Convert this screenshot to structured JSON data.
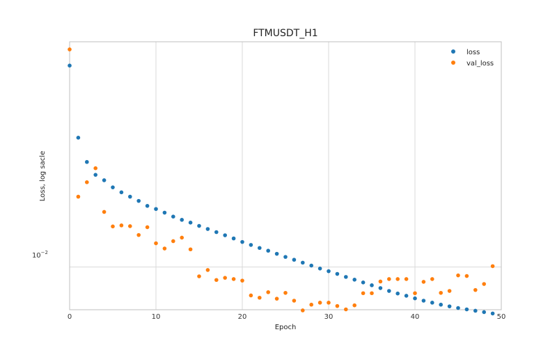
{
  "chart_data": {
    "type": "scatter",
    "title": "FTMUSDT_H1",
    "xlabel": "Epoch",
    "ylabel": "Loss, log sacle",
    "x_ticks": [
      "0",
      "10",
      "20",
      "30",
      "40",
      "50"
    ],
    "y_tick_label": {
      "base": "10",
      "exponent": "−2"
    },
    "xlim": [
      0,
      50
    ],
    "ylim": [
      0.00865,
      0.0215
    ],
    "y_scale": "log",
    "grid": true,
    "legend_position": "top-right",
    "series": [
      {
        "name": "loss",
        "color": "#1f77b4",
        "x": [
          0,
          1,
          2,
          3,
          4,
          5,
          6,
          7,
          8,
          9,
          10,
          11,
          12,
          13,
          14,
          15,
          16,
          17,
          18,
          19,
          20,
          21,
          22,
          23,
          24,
          25,
          26,
          27,
          28,
          29,
          30,
          31,
          32,
          33,
          34,
          35,
          36,
          37,
          38,
          39,
          40,
          41,
          42,
          43,
          44,
          45,
          46,
          47,
          48,
          49
        ],
        "y": [
          0.01983,
          0.01552,
          0.01429,
          0.01368,
          0.01343,
          0.01311,
          0.01289,
          0.0127,
          0.01252,
          0.01231,
          0.01218,
          0.01203,
          0.01187,
          0.01174,
          0.01163,
          0.0115,
          0.01138,
          0.01126,
          0.01114,
          0.01102,
          0.01089,
          0.01078,
          0.01067,
          0.01057,
          0.01046,
          0.01035,
          0.01025,
          0.01015,
          0.01005,
          0.00995,
          0.00986,
          0.00977,
          0.00967,
          0.00958,
          0.00949,
          0.0094,
          0.00931,
          0.00922,
          0.00914,
          0.00907,
          0.00899,
          0.00892,
          0.00886,
          0.0088,
          0.00875,
          0.0087,
          0.00866,
          0.00862,
          0.00858,
          0.00854
        ]
      },
      {
        "name": "val_loss",
        "color": "#ff7f0e",
        "x": [
          0,
          1,
          2,
          3,
          4,
          5,
          6,
          7,
          8,
          9,
          10,
          11,
          12,
          13,
          14,
          15,
          16,
          17,
          18,
          19,
          20,
          21,
          22,
          23,
          24,
          25,
          26,
          27,
          28,
          29,
          30,
          31,
          32,
          33,
          34,
          35,
          36,
          37,
          38,
          39,
          40,
          41,
          42,
          43,
          44,
          45,
          46,
          47,
          48,
          49
        ],
        "y": [
          0.02095,
          0.0127,
          0.01334,
          0.01399,
          0.01206,
          0.01148,
          0.01152,
          0.01149,
          0.01115,
          0.01145,
          0.01084,
          0.01065,
          0.01092,
          0.01105,
          0.01062,
          0.00969,
          0.0099,
          0.00957,
          0.00964,
          0.0096,
          0.00955,
          0.00908,
          0.00901,
          0.00918,
          0.00898,
          0.00916,
          0.00892,
          0.00863,
          0.0088,
          0.00886,
          0.00886,
          0.00876,
          0.00866,
          0.00878,
          0.00915,
          0.00915,
          0.00952,
          0.0096,
          0.0096,
          0.0096,
          0.00915,
          0.00951,
          0.0096,
          0.00916,
          0.00922,
          0.00972,
          0.0097,
          0.00925,
          0.00944,
          0.01003
        ]
      }
    ]
  }
}
